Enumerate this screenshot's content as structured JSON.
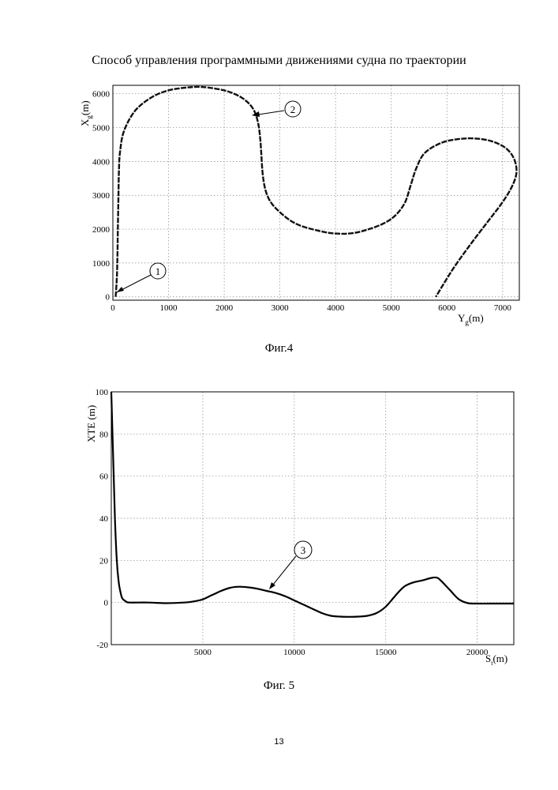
{
  "page": {
    "title": "Способ управления программными движениями судна по траектории",
    "page_number": "13"
  },
  "figures": [
    {
      "caption": "Фиг.4",
      "ylabel_main": "X",
      "ylabel_sub": "g",
      "ylabel_unit": "(m)",
      "xlabel_main": "Y",
      "xlabel_sub": "g",
      "xlabel_unit": "(m)",
      "callouts": [
        "1",
        "2"
      ]
    },
    {
      "caption": "Фиг. 5",
      "ylabel": "XTE (m)",
      "xlabel_main": "S",
      "xlabel_sub": "t",
      "xlabel_unit": "(m)",
      "callouts": [
        "3"
      ]
    }
  ],
  "chart_data": [
    {
      "type": "line",
      "title": "",
      "xlabel": "Yg(m)",
      "ylabel": "Xg(m)",
      "xlim": [
        0,
        7300
      ],
      "ylim": [
        -100,
        6250
      ],
      "xticks": [
        0,
        1000,
        2000,
        3000,
        4000,
        5000,
        6000,
        7000
      ],
      "yticks": [
        0,
        1000,
        2000,
        3000,
        4000,
        5000,
        6000
      ],
      "grid": true,
      "series": [
        {
          "x": [
            50,
            70,
            80,
            90,
            100,
            110,
            130,
            200,
            400,
            700,
            1000,
            1300,
            1600,
            2000,
            2300,
            2500,
            2600,
            2650,
            2700,
            2800,
            3000,
            3300,
            3700,
            4000,
            4300,
            4600,
            4900,
            5100,
            5250,
            5350,
            5450,
            5600,
            5900,
            6200,
            6500,
            6800,
            7050,
            7200,
            7250,
            7180,
            7000,
            6700,
            6400,
            6100,
            5800
          ],
          "y": [
            0,
            500,
            1000,
            2000,
            3000,
            3800,
            4300,
            4900,
            5500,
            5900,
            6100,
            6180,
            6200,
            6100,
            5900,
            5600,
            5200,
            4600,
            3500,
            2900,
            2500,
            2150,
            1950,
            1870,
            1880,
            2000,
            2200,
            2450,
            2800,
            3300,
            3800,
            4250,
            4550,
            4660,
            4680,
            4600,
            4400,
            4100,
            3700,
            3300,
            2800,
            2150,
            1500,
            800,
            0
          ]
        }
      ],
      "annotations": [
        "1",
        "2"
      ]
    },
    {
      "type": "line",
      "title": "",
      "xlabel": "St(m)",
      "ylabel": "XTE (m)",
      "xlim": [
        0,
        22000
      ],
      "ylim": [
        -20,
        100
      ],
      "xticks": [
        5000,
        10000,
        15000,
        20000
      ],
      "yticks": [
        -20,
        0,
        20,
        40,
        60,
        80,
        100
      ],
      "grid": true,
      "series": [
        {
          "x": [
            0,
            100,
            200,
            300,
            400,
            500,
            600,
            800,
            1000,
            2000,
            3000,
            4000,
            4500,
            5000,
            5500,
            6000,
            6500,
            7000,
            7500,
            8000,
            8500,
            9000,
            9500,
            10000,
            10500,
            11000,
            11500,
            12000,
            12500,
            13000,
            13500,
            14000,
            14500,
            15000,
            15500,
            16000,
            16500,
            17000,
            17500,
            17800,
            18000,
            18500,
            19000,
            19500,
            20000,
            21000,
            22000
          ],
          "y": [
            100,
            70,
            40,
            20,
            10,
            5,
            2,
            0.5,
            0,
            0,
            -0.3,
            0,
            0.5,
            1.5,
            3.5,
            5.5,
            7,
            7.5,
            7.2,
            6.5,
            5.5,
            4.5,
            3,
            1,
            -1,
            -3,
            -5,
            -6.3,
            -6.7,
            -6.8,
            -6.7,
            -6.3,
            -5,
            -2,
            3,
            7.5,
            9.5,
            10.5,
            11.7,
            11.8,
            10.5,
            6,
            1.5,
            -0.3,
            -0.5,
            -0.5,
            -0.5
          ]
        }
      ],
      "annotations": [
        "3"
      ]
    }
  ]
}
